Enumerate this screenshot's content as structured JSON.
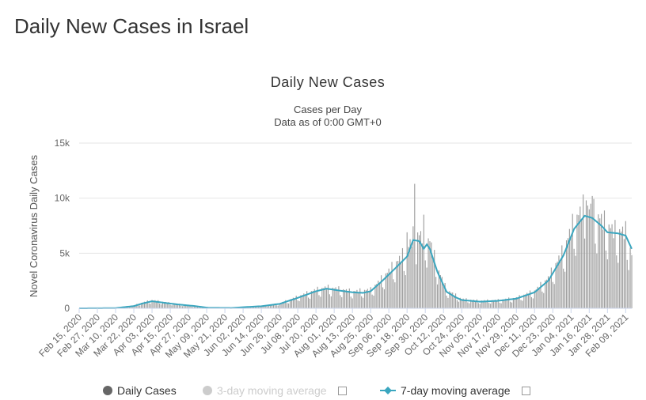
{
  "page": {
    "heading": "Daily New Cases in Israel"
  },
  "chart_data": {
    "type": "bar",
    "title": "Daily New Cases",
    "subtitle_line1": "Cases per Day",
    "subtitle_line2": "Data as of 0:00 GMT+0",
    "ylabel": "Novel Coronavirus Daily Cases",
    "ylim": [
      0,
      15000
    ],
    "yticks": [
      0,
      5000,
      10000,
      15000
    ],
    "ytick_labels": [
      "0",
      "5k",
      "10k",
      "15k"
    ],
    "grid": true,
    "x_start": "2020-02-15",
    "x_end": "2021-02-13",
    "xtick_labels": [
      "Feb 15, 2020",
      "Feb 27, 2020",
      "Mar 10, 2020",
      "Mar 22, 2020",
      "Apr 03, 2020",
      "Apr 15, 2020",
      "Apr 27, 2020",
      "May 09, 2020",
      "May 21, 2020",
      "Jun 02, 2020",
      "Jun 14, 2020",
      "Jun 26, 2020",
      "Jul 08, 2020",
      "Jul 20, 2020",
      "Aug 01, 2020",
      "Aug 13, 2020",
      "Aug 25, 2020",
      "Sep 06, 2020",
      "Sep 18, 2020",
      "Sep 30, 2020",
      "Oct 12, 2020",
      "Oct 24, 2020",
      "Nov 05, 2020",
      "Nov 17, 2020",
      "Nov 29, 2020",
      "Dec 11, 2020",
      "Dec 23, 2020",
      "Jan 04, 2021",
      "Jan 16, 2021",
      "Jan 28, 2021",
      "Feb 09, 2021"
    ],
    "series": [
      {
        "name": "Daily Cases",
        "type": "bar",
        "color": "#9e9e9e",
        "anchor_points": [
          [
            "2020-02-15",
            0
          ],
          [
            "2020-03-10",
            30
          ],
          [
            "2020-03-22",
            250
          ],
          [
            "2020-03-28",
            500
          ],
          [
            "2020-04-03",
            700
          ],
          [
            "2020-04-10",
            550
          ],
          [
            "2020-04-20",
            350
          ],
          [
            "2020-04-30",
            200
          ],
          [
            "2020-05-10",
            40
          ],
          [
            "2020-05-25",
            30
          ],
          [
            "2020-06-02",
            110
          ],
          [
            "2020-06-14",
            200
          ],
          [
            "2020-06-26",
            420
          ],
          [
            "2020-07-08",
            1000
          ],
          [
            "2020-07-20",
            1600
          ],
          [
            "2020-07-27",
            1800
          ],
          [
            "2020-08-05",
            1650
          ],
          [
            "2020-08-13",
            1450
          ],
          [
            "2020-08-25",
            1600
          ],
          [
            "2020-09-01",
            2500
          ],
          [
            "2020-09-10",
            3800
          ],
          [
            "2020-09-18",
            5000
          ],
          [
            "2020-09-23",
            6500
          ],
          [
            "2020-09-28",
            6200
          ],
          [
            "2020-10-03",
            5800
          ],
          [
            "2020-10-08",
            3500
          ],
          [
            "2020-10-14",
            1600
          ],
          [
            "2020-10-24",
            800
          ],
          [
            "2020-11-05",
            650
          ],
          [
            "2020-11-17",
            700
          ],
          [
            "2020-11-29",
            900
          ],
          [
            "2020-12-11",
            1500
          ],
          [
            "2020-12-20",
            2600
          ],
          [
            "2020-12-30",
            5000
          ],
          [
            "2021-01-06",
            7500
          ],
          [
            "2021-01-13",
            8800
          ],
          [
            "2021-01-18",
            8400
          ],
          [
            "2021-01-26",
            7400
          ],
          [
            "2021-02-01",
            6700
          ],
          [
            "2021-02-09",
            6600
          ],
          [
            "2021-02-13",
            4600
          ]
        ],
        "spikes": [
          [
            "2020-09-23",
            11300
          ],
          [
            "2020-09-29",
            8500
          ],
          [
            "2020-09-18",
            6900
          ],
          [
            "2021-01-18",
            10200
          ],
          [
            "2021-01-14",
            9800
          ]
        ]
      },
      {
        "name": "3-day moving average",
        "type": "line",
        "color": "#cccccc",
        "visible": false
      },
      {
        "name": "7-day moving average",
        "type": "line",
        "color": "#3aa6bf",
        "points": [
          [
            "2020-02-15",
            0
          ],
          [
            "2020-03-10",
            20
          ],
          [
            "2020-03-22",
            200
          ],
          [
            "2020-03-28",
            450
          ],
          [
            "2020-04-03",
            640
          ],
          [
            "2020-04-10",
            520
          ],
          [
            "2020-04-20",
            350
          ],
          [
            "2020-04-30",
            220
          ],
          [
            "2020-05-10",
            50
          ],
          [
            "2020-05-25",
            30
          ],
          [
            "2020-06-02",
            100
          ],
          [
            "2020-06-14",
            190
          ],
          [
            "2020-06-26",
            400
          ],
          [
            "2020-07-08",
            950
          ],
          [
            "2020-07-20",
            1550
          ],
          [
            "2020-07-27",
            1780
          ],
          [
            "2020-08-05",
            1600
          ],
          [
            "2020-08-13",
            1450
          ],
          [
            "2020-08-20",
            1400
          ],
          [
            "2020-08-25",
            1550
          ],
          [
            "2020-09-01",
            2400
          ],
          [
            "2020-09-10",
            3600
          ],
          [
            "2020-09-18",
            4700
          ],
          [
            "2020-09-22",
            6200
          ],
          [
            "2020-09-26",
            6100
          ],
          [
            "2020-09-29",
            5400
          ],
          [
            "2020-10-01",
            5800
          ],
          [
            "2020-10-03",
            5400
          ],
          [
            "2020-10-08",
            3300
          ],
          [
            "2020-10-14",
            1500
          ],
          [
            "2020-10-20",
            1000
          ],
          [
            "2020-10-24",
            750
          ],
          [
            "2020-11-05",
            600
          ],
          [
            "2020-11-17",
            680
          ],
          [
            "2020-11-29",
            880
          ],
          [
            "2020-12-11",
            1450
          ],
          [
            "2020-12-20",
            2500
          ],
          [
            "2020-12-30",
            4800
          ],
          [
            "2021-01-06",
            7200
          ],
          [
            "2021-01-13",
            8400
          ],
          [
            "2021-01-18",
            8200
          ],
          [
            "2021-01-24",
            7500
          ],
          [
            "2021-01-28",
            6900
          ],
          [
            "2021-02-04",
            6800
          ],
          [
            "2021-02-09",
            6600
          ],
          [
            "2021-02-13",
            5400
          ]
        ]
      }
    ],
    "legend": {
      "position": "bottom",
      "items": [
        "Daily Cases",
        "3-day moving average",
        "7-day moving average"
      ]
    }
  }
}
